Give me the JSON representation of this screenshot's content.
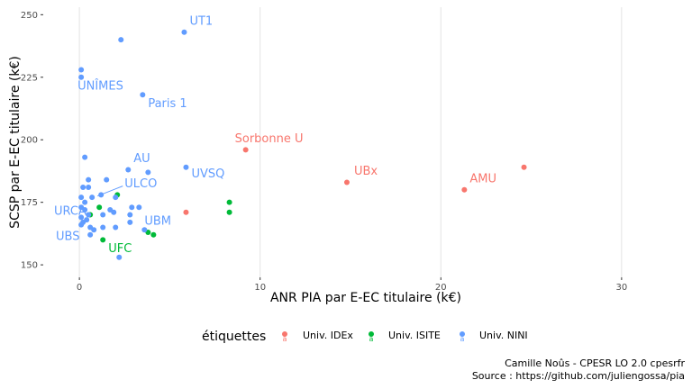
{
  "chart_data": {
    "type": "scatter",
    "xlabel": "ANR PIA par E-EC titulaire (k€)",
    "ylabel": "SCSP par E-EC titulaire (k€)",
    "xlim": [
      -2,
      32.5
    ],
    "ylim": [
      145,
      253
    ],
    "xticks": [
      0,
      10,
      20,
      30
    ],
    "yticks": [
      150,
      175,
      200,
      225,
      250
    ],
    "grid": true,
    "legend": {
      "title": "étiquettes",
      "placement": "bottom",
      "key_glyph": "a",
      "entries": [
        {
          "name": "Univ. IDEx",
          "color": "#F8766D"
        },
        {
          "name": "Univ. ISITE",
          "color": "#00BA38"
        },
        {
          "name": "Univ. NINI",
          "color": "#619CFF"
        }
      ]
    },
    "series": [
      {
        "name": "Univ. IDEx",
        "color": "#F8766D",
        "points": [
          [
            9.2,
            196
          ],
          [
            14.8,
            183
          ],
          [
            21.3,
            180
          ],
          [
            24.6,
            189
          ],
          [
            5.9,
            171
          ]
        ]
      },
      {
        "name": "Univ. ISITE",
        "color": "#00BA38",
        "points": [
          [
            1.1,
            173
          ],
          [
            1.3,
            160
          ],
          [
            2.1,
            178
          ],
          [
            3.8,
            163
          ],
          [
            4.1,
            162
          ],
          [
            8.3,
            175
          ],
          [
            8.3,
            171
          ],
          [
            0.6,
            170
          ]
        ]
      },
      {
        "name": "Univ. NINI",
        "color": "#619CFF",
        "points": [
          [
            5.8,
            243
          ],
          [
            2.3,
            240
          ],
          [
            0.1,
            228
          ],
          [
            0.1,
            225
          ],
          [
            3.5,
            218
          ],
          [
            0.3,
            193
          ],
          [
            0.2,
            181
          ],
          [
            0.5,
            181
          ],
          [
            0.5,
            184
          ],
          [
            1.5,
            184
          ],
          [
            2.7,
            188
          ],
          [
            3.8,
            187
          ],
          [
            5.9,
            189
          ],
          [
            0.1,
            177
          ],
          [
            0.3,
            175
          ],
          [
            0.7,
            177
          ],
          [
            1.2,
            178
          ],
          [
            2.0,
            177
          ],
          [
            0.1,
            173
          ],
          [
            0.3,
            172
          ],
          [
            0.5,
            170
          ],
          [
            1.3,
            170
          ],
          [
            1.7,
            172
          ],
          [
            1.9,
            171
          ],
          [
            2.9,
            173
          ],
          [
            3.3,
            173
          ],
          [
            0.1,
            169
          ],
          [
            0.2,
            167
          ],
          [
            0.4,
            168
          ],
          [
            0.1,
            166
          ],
          [
            0.6,
            165
          ],
          [
            0.8,
            164
          ],
          [
            2.8,
            170
          ],
          [
            2.8,
            167
          ],
          [
            1.3,
            165
          ],
          [
            2.0,
            165
          ],
          [
            0.6,
            162
          ],
          [
            3.6,
            164
          ],
          [
            2.2,
            153
          ]
        ]
      }
    ],
    "labels": [
      {
        "text": "UT1",
        "x": 6.1,
        "y": 246,
        "color": "#619CFF"
      },
      {
        "text": "UNÎMES",
        "x": -0.1,
        "y": 220,
        "color": "#619CFF"
      },
      {
        "text": "Paris 1",
        "x": 3.8,
        "y": 213,
        "color": "#619CFF"
      },
      {
        "text": "Sorbonne U",
        "x": 8.6,
        "y": 199,
        "color": "#F8766D"
      },
      {
        "text": "UBx",
        "x": 15.2,
        "y": 186,
        "color": "#F8766D"
      },
      {
        "text": "AMU",
        "x": 21.6,
        "y": 183,
        "color": "#F8766D"
      },
      {
        "text": "AU",
        "x": 3.0,
        "y": 191,
        "color": "#619CFF"
      },
      {
        "text": "UVSQ",
        "x": 6.2,
        "y": 185,
        "color": "#619CFF"
      },
      {
        "text": "ULCO",
        "x": 2.5,
        "y": 181,
        "color": "#619CFF"
      },
      {
        "text": "URCA",
        "x": -1.4,
        "y": 170,
        "color": "#619CFF"
      },
      {
        "text": "UBM",
        "x": 3.6,
        "y": 166,
        "color": "#619CFF"
      },
      {
        "text": "UBS",
        "x": -1.3,
        "y": 160,
        "color": "#619CFF"
      },
      {
        "text": "UFC",
        "x": 1.6,
        "y": 155,
        "color": "#00BA38"
      }
    ],
    "caption": [
      "Camille Noûs - CPESR LO 2.0 cpesrfr",
      "Source : https://github.com/juliengossa/pia"
    ]
  }
}
